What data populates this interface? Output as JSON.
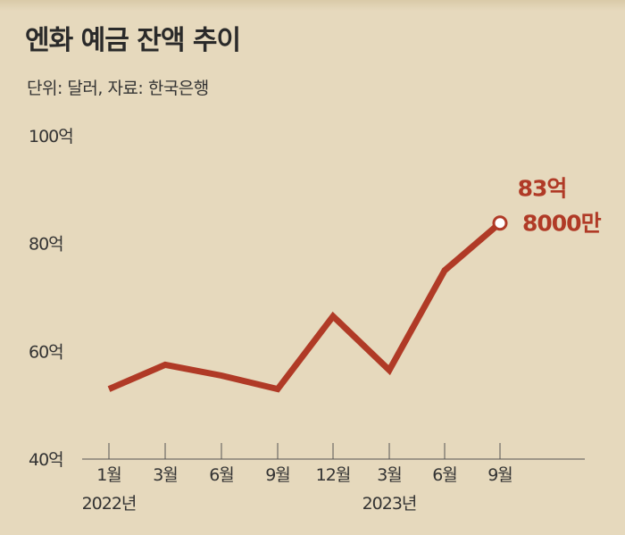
{
  "title": "엔화 예금 잔액 추이",
  "subtitle": "단위: 달러, 자료: 한국은행",
  "colors": {
    "line": "#b03a26",
    "axis": "#555555",
    "background": "#e6d9bd"
  },
  "chart_data": {
    "type": "line",
    "categories": [
      "1월",
      "3월",
      "6월",
      "9월",
      "12월",
      "3월",
      "6월",
      "9월"
    ],
    "year_labels": [
      {
        "category_index": 0,
        "label": "2022년"
      },
      {
        "category_index": 5,
        "label": "2023년"
      }
    ],
    "series": [
      {
        "values": [
          53,
          57.5,
          55.5,
          53,
          66.5,
          56.5,
          75,
          83.8
        ]
      }
    ],
    "yticks": [
      40,
      60,
      80,
      100
    ],
    "ytick_labels": [
      "40억",
      "60억",
      "80억",
      "100억"
    ],
    "ylim": [
      40,
      100
    ],
    "annotation": {
      "lines": [
        "83억",
        "8000만"
      ],
      "category_index": 7
    },
    "grid": false
  }
}
